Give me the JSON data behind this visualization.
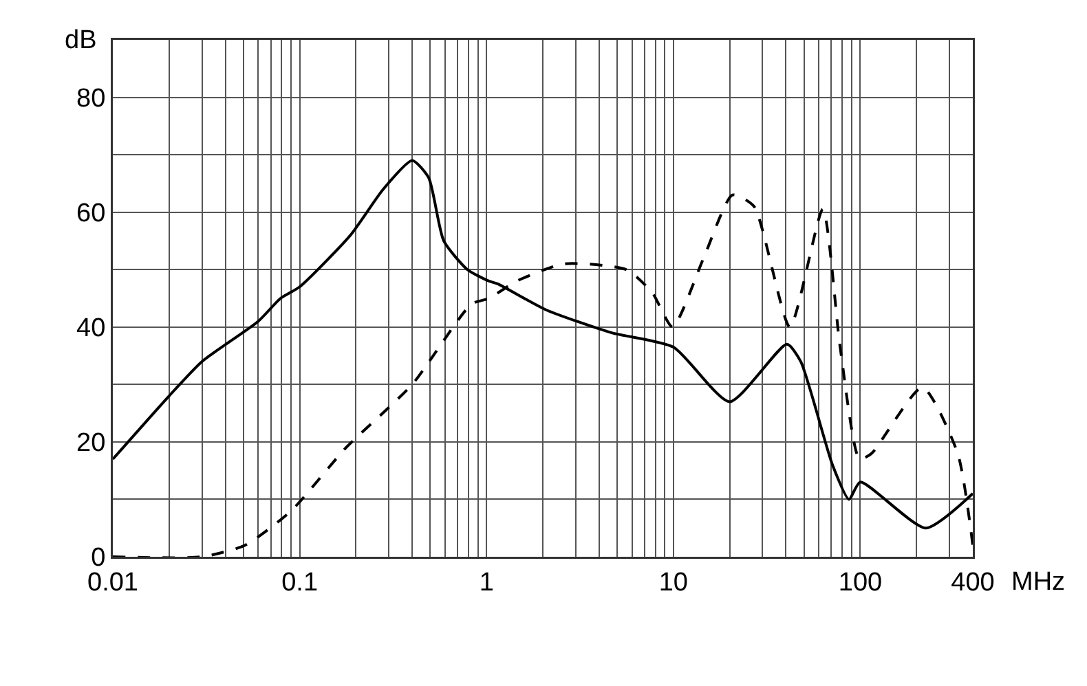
{
  "chart_data": {
    "type": "line",
    "xlabel": "MHz",
    "ylabel": "dB",
    "log": "x",
    "grid": true,
    "marker": "none",
    "xlim": [
      0.01,
      400
    ],
    "xticks": [
      0.01,
      {
        "value": 0.02,
        "label": null
      },
      {
        "value": 0.03,
        "label": null
      },
      {
        "value": 0.04,
        "label": null
      },
      {
        "value": 0.05,
        "label": null
      },
      {
        "value": 0.06,
        "label": null
      },
      {
        "value": 0.07,
        "label": null
      },
      {
        "value": 0.08,
        "label": null
      },
      {
        "value": 0.09,
        "label": null
      },
      0.1,
      {
        "value": 0.2,
        "label": null
      },
      {
        "value": 0.3,
        "label": null
      },
      {
        "value": 0.4,
        "label": null
      },
      {
        "value": 0.5,
        "label": null
      },
      {
        "value": 0.6,
        "label": null
      },
      {
        "value": 0.7,
        "label": null
      },
      {
        "value": 0.8,
        "label": null
      },
      {
        "value": 0.9,
        "label": null
      },
      1,
      {
        "value": 2,
        "label": null
      },
      {
        "value": 3,
        "label": null
      },
      {
        "value": 4,
        "label": null
      },
      {
        "value": 5,
        "label": null
      },
      {
        "value": 6,
        "label": null
      },
      {
        "value": 7,
        "label": null
      },
      {
        "value": 8,
        "label": null
      },
      {
        "value": 9,
        "label": null
      },
      10,
      {
        "value": 20,
        "label": null
      },
      {
        "value": 30,
        "label": null
      },
      {
        "value": 40,
        "label": null
      },
      {
        "value": 50,
        "label": null
      },
      {
        "value": 60,
        "label": null
      },
      {
        "value": 70,
        "label": null
      },
      {
        "value": 80,
        "label": null
      },
      {
        "value": 90,
        "label": null
      },
      100,
      {
        "value": 200,
        "label": null
      },
      {
        "value": 300,
        "label": null
      },
      400
    ],
    "ylim": [
      0,
      90
    ],
    "yticks": [
      0,
      {
        "value": 10,
        "label": null
      },
      20,
      {
        "value": 30,
        "label": null
      },
      40,
      {
        "value": 50,
        "label": null
      },
      60,
      {
        "value": 70,
        "label": null
      },
      80,
      {
        "value": 90,
        "label": null
      }
    ],
    "series": [
      {
        "color": "#000000",
        "line_style": "solid",
        "x": [
          0.01,
          0.02,
          0.03,
          0.06,
          0.079,
          0.1,
          0.187,
          0.28,
          0.4,
          0.49,
          0.59,
          0.79,
          1.03,
          1.15,
          2.08,
          4.67,
          10,
          20,
          40.5,
          48,
          71,
          87,
          100,
          224,
          400
        ],
        "values": [
          17,
          28,
          34,
          41,
          45,
          47,
          56,
          64,
          69,
          66,
          55,
          50,
          48,
          47.5,
          43,
          39,
          36.5,
          27,
          37,
          34,
          16,
          10,
          13,
          5,
          11
        ]
      },
      {
        "color": "#000000",
        "line_style": "dashed",
        "x": [
          0.01,
          0.03,
          0.051,
          0.09,
          0.177,
          0.4,
          0.83,
          1.03,
          1.45,
          2.6,
          5.6,
          7.7,
          9.9,
          14.5,
          20.7,
          27,
          42,
          63,
          78,
          99,
          115,
          215,
          332,
          400
        ],
        "values": [
          0,
          0,
          2,
          8,
          19,
          30,
          44,
          45,
          48,
          51,
          50,
          46,
          40,
          52,
          63,
          61,
          40,
          60.5,
          36.5,
          17,
          18,
          29.5,
          18,
          2
        ]
      }
    ]
  }
}
